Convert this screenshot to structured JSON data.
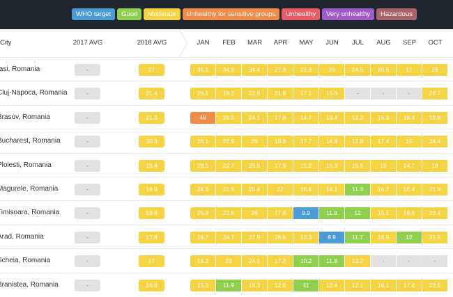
{
  "legend": [
    {
      "label": "WHO target",
      "color": "#4a9bd6"
    },
    {
      "label": "Good",
      "color": "#8fd14f"
    },
    {
      "label": "Moderate",
      "color": "#f5d342"
    },
    {
      "label": "Unhealthy for sensitive groups",
      "color": "#f38b48"
    },
    {
      "label": "Unhealthy",
      "color": "#ea5b66"
    },
    {
      "label": "Very unhealthy",
      "color": "#a05bcb"
    },
    {
      "label": "Hazardous",
      "color": "#a8646a"
    }
  ],
  "header": {
    "city": "City",
    "avg2017": "2017 AVG",
    "avg2018": "2018 AVG",
    "months": [
      "JAN",
      "FEB",
      "MAR",
      "APR",
      "MAY",
      "JUN",
      "JUL",
      "AUG",
      "SEP",
      "OCT"
    ]
  },
  "colors": {
    "who": "#4a9bd6",
    "good": "#8fd14f",
    "moderate": "#f5d342",
    "usg": "#f38b48",
    "empty": "#e2e2e2",
    "empty_text": "#888888"
  },
  "rows": [
    {
      "city": "Iasi, Romania",
      "avg2017": "-",
      "avg2018": "27",
      "months": [
        [
          "35.1",
          "m"
        ],
        [
          "34.9",
          "m"
        ],
        [
          "34.4",
          "m"
        ],
        [
          "27.9",
          "m"
        ],
        [
          "22.3",
          "m"
        ],
        [
          "20",
          "m"
        ],
        [
          "24.5",
          "m"
        ],
        [
          "20.5",
          "m"
        ],
        [
          "17",
          "m"
        ],
        [
          "29",
          "m"
        ]
      ]
    },
    {
      "city": "Cluj-Napoca, Romania",
      "avg2017": "-",
      "avg2018": "21.4",
      "months": [
        [
          "26.1",
          "m"
        ],
        [
          "19.2",
          "m"
        ],
        [
          "22.6",
          "m"
        ],
        [
          "21.8",
          "m"
        ],
        [
          "17.1",
          "m"
        ],
        [
          "15.9",
          "m"
        ],
        [
          "-",
          "e"
        ],
        [
          "-",
          "e"
        ],
        [
          "-",
          "e"
        ],
        [
          "26.7",
          "m"
        ]
      ]
    },
    {
      "city": "Brasov, Romania",
      "avg2017": "-",
      "avg2018": "21.3",
      "months": [
        [
          "48",
          "u"
        ],
        [
          "26.5",
          "m"
        ],
        [
          "24.1",
          "m"
        ],
        [
          "17.8",
          "m"
        ],
        [
          "14.7",
          "m"
        ],
        [
          "13.4",
          "m"
        ],
        [
          "12.2",
          "m"
        ],
        [
          "16.3",
          "m"
        ],
        [
          "18.4",
          "m"
        ],
        [
          "19.8",
          "m"
        ]
      ]
    },
    {
      "city": "Bucharest, Romania",
      "avg2017": "-",
      "avg2018": "20.3",
      "months": [
        [
          "26.1",
          "m"
        ],
        [
          "22.9",
          "m"
        ],
        [
          "26",
          "m"
        ],
        [
          "19.8",
          "m"
        ],
        [
          "17.7",
          "m"
        ],
        [
          "14.8",
          "m"
        ],
        [
          "12.8",
          "m"
        ],
        [
          "17.4",
          "m"
        ],
        [
          "15",
          "m"
        ],
        [
          "24.4",
          "m"
        ]
      ]
    },
    {
      "city": "Ploiesti, Romania",
      "avg2017": "-",
      "avg2018": "19.4",
      "months": [
        [
          "28.5",
          "m"
        ],
        [
          "22.7",
          "m"
        ],
        [
          "29.5",
          "m"
        ],
        [
          "17.9",
          "m"
        ],
        [
          "15.2",
          "m"
        ],
        [
          "15.3",
          "m"
        ],
        [
          "15.5",
          "m"
        ],
        [
          "15",
          "m"
        ],
        [
          "14.7",
          "m"
        ],
        [
          "19",
          "m"
        ]
      ]
    },
    {
      "city": "Magurele, Romania",
      "avg2017": "-",
      "avg2018": "18.9",
      "months": [
        [
          "24.5",
          "m"
        ],
        [
          "21.5",
          "m"
        ],
        [
          "20.4",
          "m"
        ],
        [
          "22",
          "m"
        ],
        [
          "16.4",
          "m"
        ],
        [
          "14.1",
          "m"
        ],
        [
          "11.3",
          "g"
        ],
        [
          "16.7",
          "m"
        ],
        [
          "16.4",
          "m"
        ],
        [
          "21.9",
          "m"
        ]
      ]
    },
    {
      "city": "Timisoara, Romania",
      "avg2017": "-",
      "avg2018": "18.6",
      "months": [
        [
          "25.9",
          "m"
        ],
        [
          "21.6",
          "m"
        ],
        [
          "26",
          "m"
        ],
        [
          "17.8",
          "m"
        ],
        [
          "9.9",
          "w"
        ],
        [
          "11.9",
          "g"
        ],
        [
          "12",
          "g"
        ],
        [
          "15.1",
          "m"
        ],
        [
          "16.6",
          "m"
        ],
        [
          "23.4",
          "m"
        ]
      ]
    },
    {
      "city": "Arad, Romania",
      "avg2017": "-",
      "avg2018": "17.8",
      "months": [
        [
          "24.7",
          "m"
        ],
        [
          "24.7",
          "m"
        ],
        [
          "27.9",
          "m"
        ],
        [
          "26.5",
          "m"
        ],
        [
          "12.3",
          "m"
        ],
        [
          "8.9",
          "w"
        ],
        [
          "11.7",
          "g"
        ],
        [
          "14.5",
          "m"
        ],
        [
          "12",
          "g"
        ],
        [
          "21.5",
          "m"
        ]
      ]
    },
    {
      "city": "Scheia, Romania",
      "avg2017": "-",
      "avg2018": "17",
      "months": [
        [
          "19.2",
          "m"
        ],
        [
          "23",
          "m"
        ],
        [
          "24.1",
          "m"
        ],
        [
          "17.2",
          "m"
        ],
        [
          "10.2",
          "g"
        ],
        [
          "11.8",
          "g"
        ],
        [
          "13.2",
          "m"
        ],
        [
          "-",
          "e"
        ],
        [
          "-",
          "e"
        ],
        [
          "-",
          "e"
        ]
      ]
    },
    {
      "city": "Branistea, Romania",
      "avg2017": "-",
      "avg2018": "16.8",
      "months": [
        [
          "15.6",
          "m"
        ],
        [
          "11.9",
          "g"
        ],
        [
          "15.3",
          "m"
        ],
        [
          "12.6",
          "m"
        ],
        [
          "11",
          "g"
        ],
        [
          "12.4",
          "m"
        ],
        [
          "12.1",
          "m"
        ],
        [
          "16.1",
          "m"
        ],
        [
          "17.6",
          "m"
        ],
        [
          "23.5",
          "m"
        ]
      ]
    }
  ]
}
